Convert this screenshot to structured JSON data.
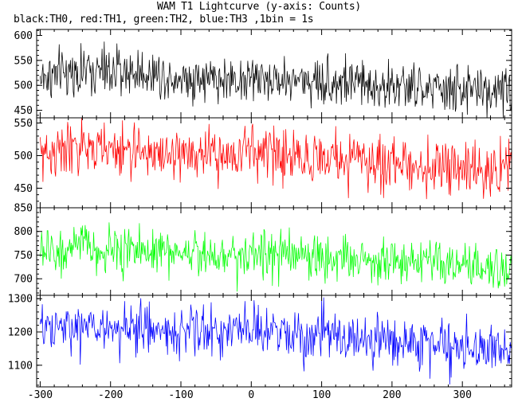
{
  "chart_data": {
    "type": "line",
    "title": "WAM T1 Lightcurve (y-axis: Counts)",
    "subtitle": "black:TH0, red:TH1, green:TH2, blue:TH3 ,1bin = 1s",
    "xlabel": "",
    "ylabel": "",
    "xlim": [
      -305,
      370
    ],
    "xticks": [
      -300,
      -200,
      -100,
      0,
      100,
      200,
      300
    ],
    "bin_seconds": 1,
    "grid": false,
    "panels": [
      {
        "name": "TH0",
        "color": "#000000",
        "ylim": [
          435,
          612
        ],
        "yticks": [
          450,
          500,
          550,
          600
        ],
        "profile": [
          [
            -300,
            515
          ],
          [
            -250,
            528
          ],
          [
            -200,
            527
          ],
          [
            -150,
            526
          ],
          [
            -100,
            517
          ],
          [
            -50,
            512
          ],
          [
            0,
            513
          ],
          [
            50,
            511
          ],
          [
            100,
            509
          ],
          [
            150,
            505
          ],
          [
            200,
            497
          ],
          [
            250,
            492
          ],
          [
            300,
            490
          ],
          [
            370,
            492
          ]
        ],
        "noise": 24
      },
      {
        "name": "TH1",
        "color": "#ff0000",
        "ylim": [
          420,
          558
        ],
        "yticks": [
          450,
          500,
          550
        ],
        "profile": [
          [
            -300,
            503
          ],
          [
            -250,
            510
          ],
          [
            -200,
            509
          ],
          [
            -150,
            505
          ],
          [
            -100,
            502
          ],
          [
            -50,
            498
          ],
          [
            0,
            508
          ],
          [
            50,
            500
          ],
          [
            100,
            497
          ],
          [
            150,
            492
          ],
          [
            200,
            488
          ],
          [
            250,
            484
          ],
          [
            300,
            477
          ],
          [
            370,
            481
          ]
        ],
        "noise": 20
      },
      {
        "name": "TH2",
        "color": "#00ff00",
        "ylim": [
          665,
          850
        ],
        "yticks": [
          700,
          750,
          800,
          850
        ],
        "profile": [
          [
            -300,
            758
          ],
          [
            -250,
            760
          ],
          [
            -230,
            774
          ],
          [
            -215,
            745
          ],
          [
            -200,
            762
          ],
          [
            -150,
            760
          ],
          [
            -100,
            758
          ],
          [
            -50,
            752
          ],
          [
            0,
            754
          ],
          [
            50,
            748
          ],
          [
            100,
            747
          ],
          [
            150,
            742
          ],
          [
            200,
            738
          ],
          [
            250,
            730
          ],
          [
            300,
            724
          ],
          [
            370,
            716
          ]
        ],
        "noise": 24
      },
      {
        "name": "TH3",
        "color": "#0000ff",
        "ylim": [
          1035,
          1310
        ],
        "yticks": [
          1100,
          1200,
          1300
        ],
        "profile": [
          [
            -300,
            1200
          ],
          [
            -250,
            1213
          ],
          [
            -200,
            1211
          ],
          [
            -150,
            1208
          ],
          [
            -100,
            1205
          ],
          [
            -50,
            1202
          ],
          [
            0,
            1200
          ],
          [
            50,
            1195
          ],
          [
            100,
            1187
          ],
          [
            150,
            1180
          ],
          [
            200,
            1173
          ],
          [
            250,
            1163
          ],
          [
            300,
            1155
          ],
          [
            370,
            1150
          ]
        ],
        "noise": 38
      }
    ]
  }
}
